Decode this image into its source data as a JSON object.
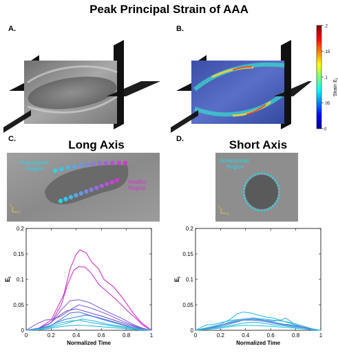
{
  "title": "Peak Principal Strain of AAA",
  "panels": {
    "a": "A.",
    "b": "B.",
    "c": "C.",
    "d": "D."
  },
  "long_axis_title": "Long Axis",
  "short_axis_title": "Short Axis",
  "annotations": {
    "aneurysmal_long": "Aneurysmal\nRegion",
    "healthy_long": "Healthy\nRegion",
    "aneurysmal_short": "Aneurysmal\nRegion",
    "axis_z": "z",
    "axis_y": "y"
  },
  "colorbar": {
    "label": "Strain E",
    "label_sub": "I",
    "ticks": [
      ".2",
      ".15",
      ".1",
      ".05",
      "0"
    ]
  },
  "colors": {
    "magenta": "#cc33cc",
    "purple": "#8866dd",
    "blue": "#5577dd",
    "cyan": "#33bbdd",
    "dot_cyan": "#2ad4ea",
    "dot_magenta": "#d633d6"
  },
  "chart_data": [
    {
      "type": "line",
      "xlabel": "Normalized Time",
      "ylabel": "E",
      "ylabel_sub": "I",
      "xlim": [
        0,
        1
      ],
      "ylim": [
        0,
        0.2
      ],
      "xticks": [
        "0",
        "0.2",
        "0.4",
        "0.6",
        "0.8",
        "1"
      ],
      "yticks": [
        "0",
        "0.05",
        "0.1",
        "0.15",
        "0.2"
      ],
      "series": [
        {
          "color": "#cc33cc",
          "x": [
            0,
            0.1,
            0.2,
            0.3,
            0.35,
            0.4,
            0.43,
            0.48,
            0.52,
            0.58,
            0.62,
            0.7,
            0.78,
            0.85,
            0.92,
            1
          ],
          "y": [
            0,
            0.004,
            0.02,
            0.07,
            0.12,
            0.15,
            0.158,
            0.152,
            0.135,
            0.12,
            0.1,
            0.085,
            0.06,
            0.035,
            0.015,
            0
          ]
        },
        {
          "color": "#cc33cc",
          "x": [
            0,
            0.1,
            0.2,
            0.28,
            0.33,
            0.38,
            0.42,
            0.47,
            0.52,
            0.58,
            0.65,
            0.72,
            0.8,
            0.87,
            0.93,
            1
          ],
          "y": [
            0,
            0.003,
            0.015,
            0.05,
            0.09,
            0.118,
            0.125,
            0.124,
            0.112,
            0.09,
            0.075,
            0.06,
            0.04,
            0.025,
            0.01,
            0
          ]
        },
        {
          "color": "#8866dd",
          "x": [
            0,
            0.1,
            0.2,
            0.28,
            0.35,
            0.42,
            0.5,
            0.58,
            0.66,
            0.75,
            0.85,
            0.93,
            1
          ],
          "y": [
            0,
            0.004,
            0.015,
            0.04,
            0.058,
            0.06,
            0.055,
            0.045,
            0.035,
            0.025,
            0.012,
            0.004,
            0
          ]
        },
        {
          "color": "#8866dd",
          "x": [
            0,
            0.08,
            0.15,
            0.22,
            0.28,
            0.35,
            0.42,
            0.5,
            0.58,
            0.66,
            0.75,
            0.85,
            0.93,
            1
          ],
          "y": [
            0,
            0.012,
            0.02,
            0.022,
            0.028,
            0.04,
            0.05,
            0.045,
            0.038,
            0.03,
            0.02,
            0.01,
            0.003,
            0
          ]
        },
        {
          "color": "#7755cc",
          "x": [
            0,
            0.1,
            0.18,
            0.26,
            0.32,
            0.4,
            0.5,
            0.6,
            0.7,
            0.8,
            0.9,
            1
          ],
          "y": [
            0,
            0.004,
            0.012,
            0.028,
            0.038,
            0.042,
            0.035,
            0.028,
            0.02,
            0.012,
            0.005,
            0
          ]
        },
        {
          "color": "#5577dd",
          "x": [
            0,
            0.1,
            0.2,
            0.28,
            0.35,
            0.42,
            0.5,
            0.6,
            0.7,
            0.8,
            0.9,
            1
          ],
          "y": [
            0,
            0.003,
            0.01,
            0.022,
            0.034,
            0.036,
            0.03,
            0.022,
            0.015,
            0.008,
            0.003,
            0
          ]
        },
        {
          "color": "#4488dd",
          "x": [
            0,
            0.1,
            0.18,
            0.25,
            0.32,
            0.4,
            0.48,
            0.56,
            0.65,
            0.75,
            0.85,
            0.93,
            1
          ],
          "y": [
            0,
            0.003,
            0.008,
            0.016,
            0.022,
            0.026,
            0.03,
            0.026,
            0.02,
            0.013,
            0.006,
            0.002,
            0
          ]
        },
        {
          "color": "#33bbdd",
          "x": [
            0,
            0.1,
            0.2,
            0.28,
            0.35,
            0.42,
            0.5,
            0.6,
            0.7,
            0.8,
            0.9,
            1
          ],
          "y": [
            0,
            0.002,
            0.008,
            0.015,
            0.018,
            0.02,
            0.016,
            0.012,
            0.008,
            0.005,
            0.002,
            0
          ]
        },
        {
          "color": "#33bbdd",
          "x": [
            0,
            0.1,
            0.2,
            0.3,
            0.38,
            0.45,
            0.55,
            0.65,
            0.75,
            0.85,
            0.93,
            1
          ],
          "y": [
            0,
            0.002,
            0.006,
            0.012,
            0.018,
            0.022,
            0.018,
            0.012,
            0.008,
            0.004,
            0.001,
            0
          ]
        },
        {
          "color": "#33bbdd",
          "x": [
            0,
            0.1,
            0.2,
            0.3,
            0.4,
            0.5,
            0.6,
            0.7,
            0.8,
            0.9,
            1
          ],
          "y": [
            0,
            0.001,
            0.004,
            0.008,
            0.01,
            0.009,
            0.007,
            0.005,
            0.003,
            0.001,
            0
          ]
        }
      ]
    },
    {
      "type": "line",
      "xlabel": "Normalized Time",
      "ylabel": "E",
      "ylabel_sub": "I",
      "xlim": [
        0,
        1
      ],
      "ylim": [
        0,
        0.2
      ],
      "xticks": [
        "0",
        "0.2",
        "0.4",
        "0.6",
        "0.8",
        "1"
      ],
      "yticks": [
        "0",
        "0.05",
        "0.1",
        "0.15",
        "0.2"
      ],
      "series": [
        {
          "color": "#33bbdd",
          "x": [
            0,
            0.1,
            0.2,
            0.28,
            0.33,
            0.38,
            0.44,
            0.5,
            0.56,
            0.62,
            0.7,
            0.78,
            0.86,
            0.93,
            1
          ],
          "y": [
            0,
            0.006,
            0.012,
            0.022,
            0.032,
            0.036,
            0.034,
            0.03,
            0.026,
            0.024,
            0.018,
            0.012,
            0.006,
            0.002,
            0
          ]
        },
        {
          "color": "#33bbdd",
          "x": [
            0,
            0.08,
            0.15,
            0.22,
            0.3,
            0.38,
            0.46,
            0.54,
            0.62,
            0.7,
            0.78,
            0.86,
            0.93,
            1
          ],
          "y": [
            0,
            0.01,
            0.012,
            0.016,
            0.02,
            0.022,
            0.024,
            0.022,
            0.02,
            0.018,
            0.014,
            0.008,
            0.003,
            0
          ]
        },
        {
          "color": "#44aadd",
          "x": [
            0,
            0.1,
            0.2,
            0.3,
            0.38,
            0.46,
            0.54,
            0.62,
            0.68,
            0.72,
            0.78,
            0.86,
            0.93,
            1
          ],
          "y": [
            0,
            0.004,
            0.01,
            0.018,
            0.022,
            0.024,
            0.02,
            0.018,
            0.02,
            0.024,
            0.014,
            0.008,
            0.003,
            0
          ]
        },
        {
          "color": "#4488dd",
          "x": [
            0,
            0.1,
            0.2,
            0.3,
            0.38,
            0.46,
            0.54,
            0.62,
            0.7,
            0.78,
            0.86,
            0.93,
            1
          ],
          "y": [
            0,
            0.003,
            0.008,
            0.014,
            0.02,
            0.022,
            0.02,
            0.016,
            0.012,
            0.01,
            0.006,
            0.002,
            0
          ]
        },
        {
          "color": "#5577dd",
          "x": [
            0,
            0.1,
            0.2,
            0.3,
            0.38,
            0.46,
            0.54,
            0.62,
            0.7,
            0.78,
            0.86,
            0.93,
            1
          ],
          "y": [
            0,
            0.004,
            0.01,
            0.016,
            0.02,
            0.02,
            0.018,
            0.014,
            0.011,
            0.008,
            0.005,
            0.002,
            0
          ]
        },
        {
          "color": "#33bbdd",
          "x": [
            0,
            0.1,
            0.2,
            0.3,
            0.38,
            0.46,
            0.54,
            0.62,
            0.7,
            0.78,
            0.86,
            0.93,
            1
          ],
          "y": [
            0,
            0.002,
            0.006,
            0.01,
            0.014,
            0.016,
            0.014,
            0.011,
            0.009,
            0.006,
            0.003,
            0.001,
            0
          ]
        },
        {
          "color": "#22ccdd",
          "x": [
            0,
            0.1,
            0.2,
            0.3,
            0.4,
            0.5,
            0.6,
            0.7,
            0.8,
            0.9,
            1
          ],
          "y": [
            0,
            0.002,
            0.004,
            0.008,
            0.01,
            0.009,
            0.008,
            0.006,
            0.004,
            0.002,
            0
          ]
        }
      ]
    }
  ]
}
